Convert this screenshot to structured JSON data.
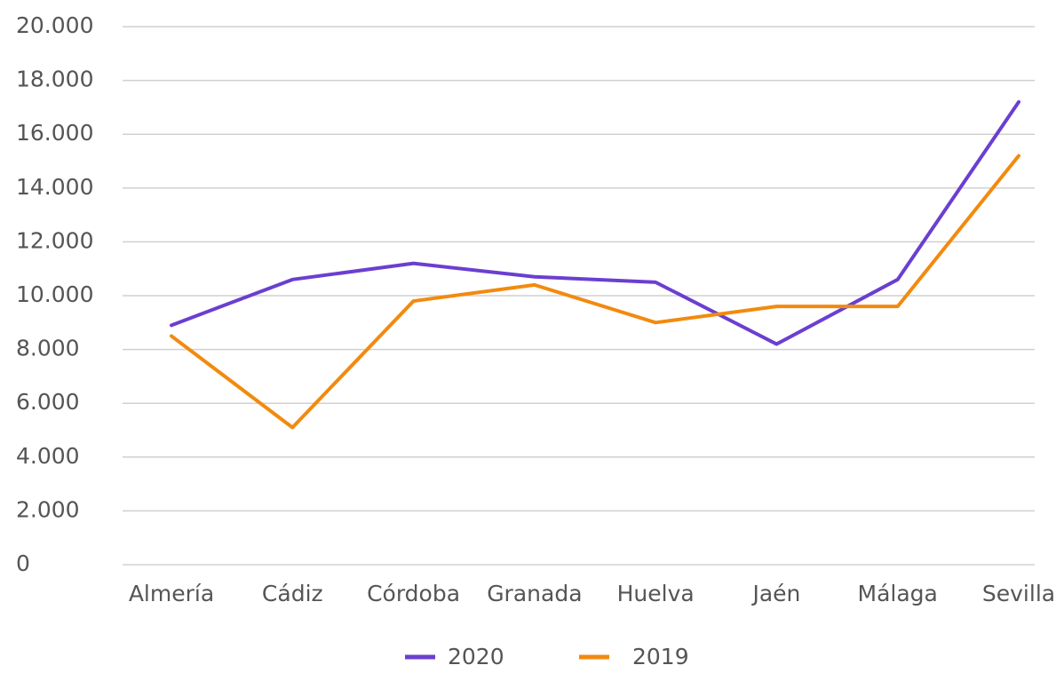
{
  "chart_data": {
    "type": "line",
    "categories": [
      "Almería",
      "Cádiz",
      "Córdoba",
      "Granada",
      "Huelva",
      "Jaén",
      "Málaga",
      "Sevilla"
    ],
    "series": [
      {
        "name": "2020",
        "color": "#6a3fd0",
        "values": [
          8900,
          10600,
          11200,
          10700,
          10500,
          8200,
          10600,
          17200
        ]
      },
      {
        "name": "2019",
        "color": "#f28a0f",
        "values": [
          8500,
          5100,
          9800,
          10400,
          9000,
          9600,
          9600,
          15200
        ]
      }
    ],
    "ylim": [
      0,
      20000
    ],
    "yticks": [
      0,
      {
        "value": 2000,
        "label": "2.000"
      },
      {
        "value": 4000,
        "label": "4.000"
      },
      {
        "value": 6000,
        "label": "6.000"
      },
      {
        "value": 8000,
        "label": "8.000"
      },
      {
        "value": 10000,
        "label": "10.000"
      },
      {
        "value": 12000,
        "label": "12.000"
      },
      {
        "value": 14000,
        "label": "14.000"
      },
      {
        "value": 16000,
        "label": "16.000"
      },
      {
        "value": 18000,
        "label": "18.000"
      },
      {
        "value": 20000,
        "label": "20.000"
      }
    ],
    "grid": true,
    "legend": "bottom"
  }
}
